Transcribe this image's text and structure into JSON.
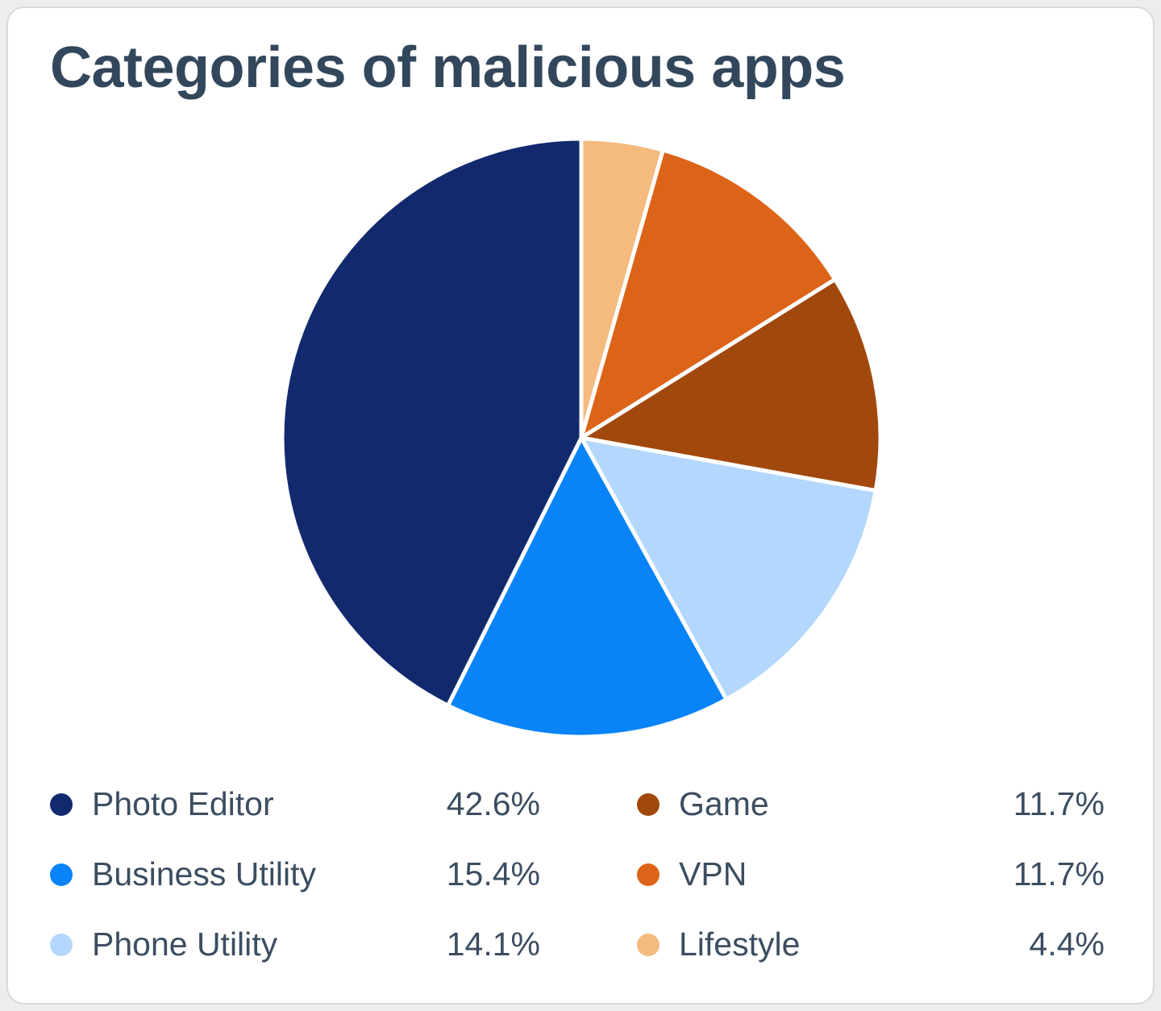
{
  "chart_data": {
    "type": "pie",
    "title": "Categories of malicious apps",
    "unit": "%",
    "start_angle_deg": 0,
    "direction": "clockwise",
    "order_clockwise_from_top": [
      "Lifestyle",
      "VPN",
      "Game",
      "Phone Utility",
      "Business Utility",
      "Photo Editor"
    ],
    "slices": [
      {
        "label": "Photo Editor",
        "value": 42.6,
        "value_label": "42.6%",
        "color": "#12296e"
      },
      {
        "label": "Business Utility",
        "value": 15.4,
        "value_label": "15.4%",
        "color": "#0884f8"
      },
      {
        "label": "Phone Utility",
        "value": 14.1,
        "value_label": "14.1%",
        "color": "#b3d7fd"
      },
      {
        "label": "Game",
        "value": 11.7,
        "value_label": "11.7%",
        "color": "#a1480c"
      },
      {
        "label": "VPN",
        "value": 11.7,
        "value_label": "11.7%",
        "color": "#dc6418"
      },
      {
        "label": "Lifestyle",
        "value": 4.4,
        "value_label": "4.4%",
        "color": "#f5ba7e"
      }
    ],
    "legend_position": "bottom",
    "legend_columns": 2,
    "slice_border_color": "#ffffff",
    "title_color": "#33475c",
    "legend_text_color": "#3c4d61"
  }
}
